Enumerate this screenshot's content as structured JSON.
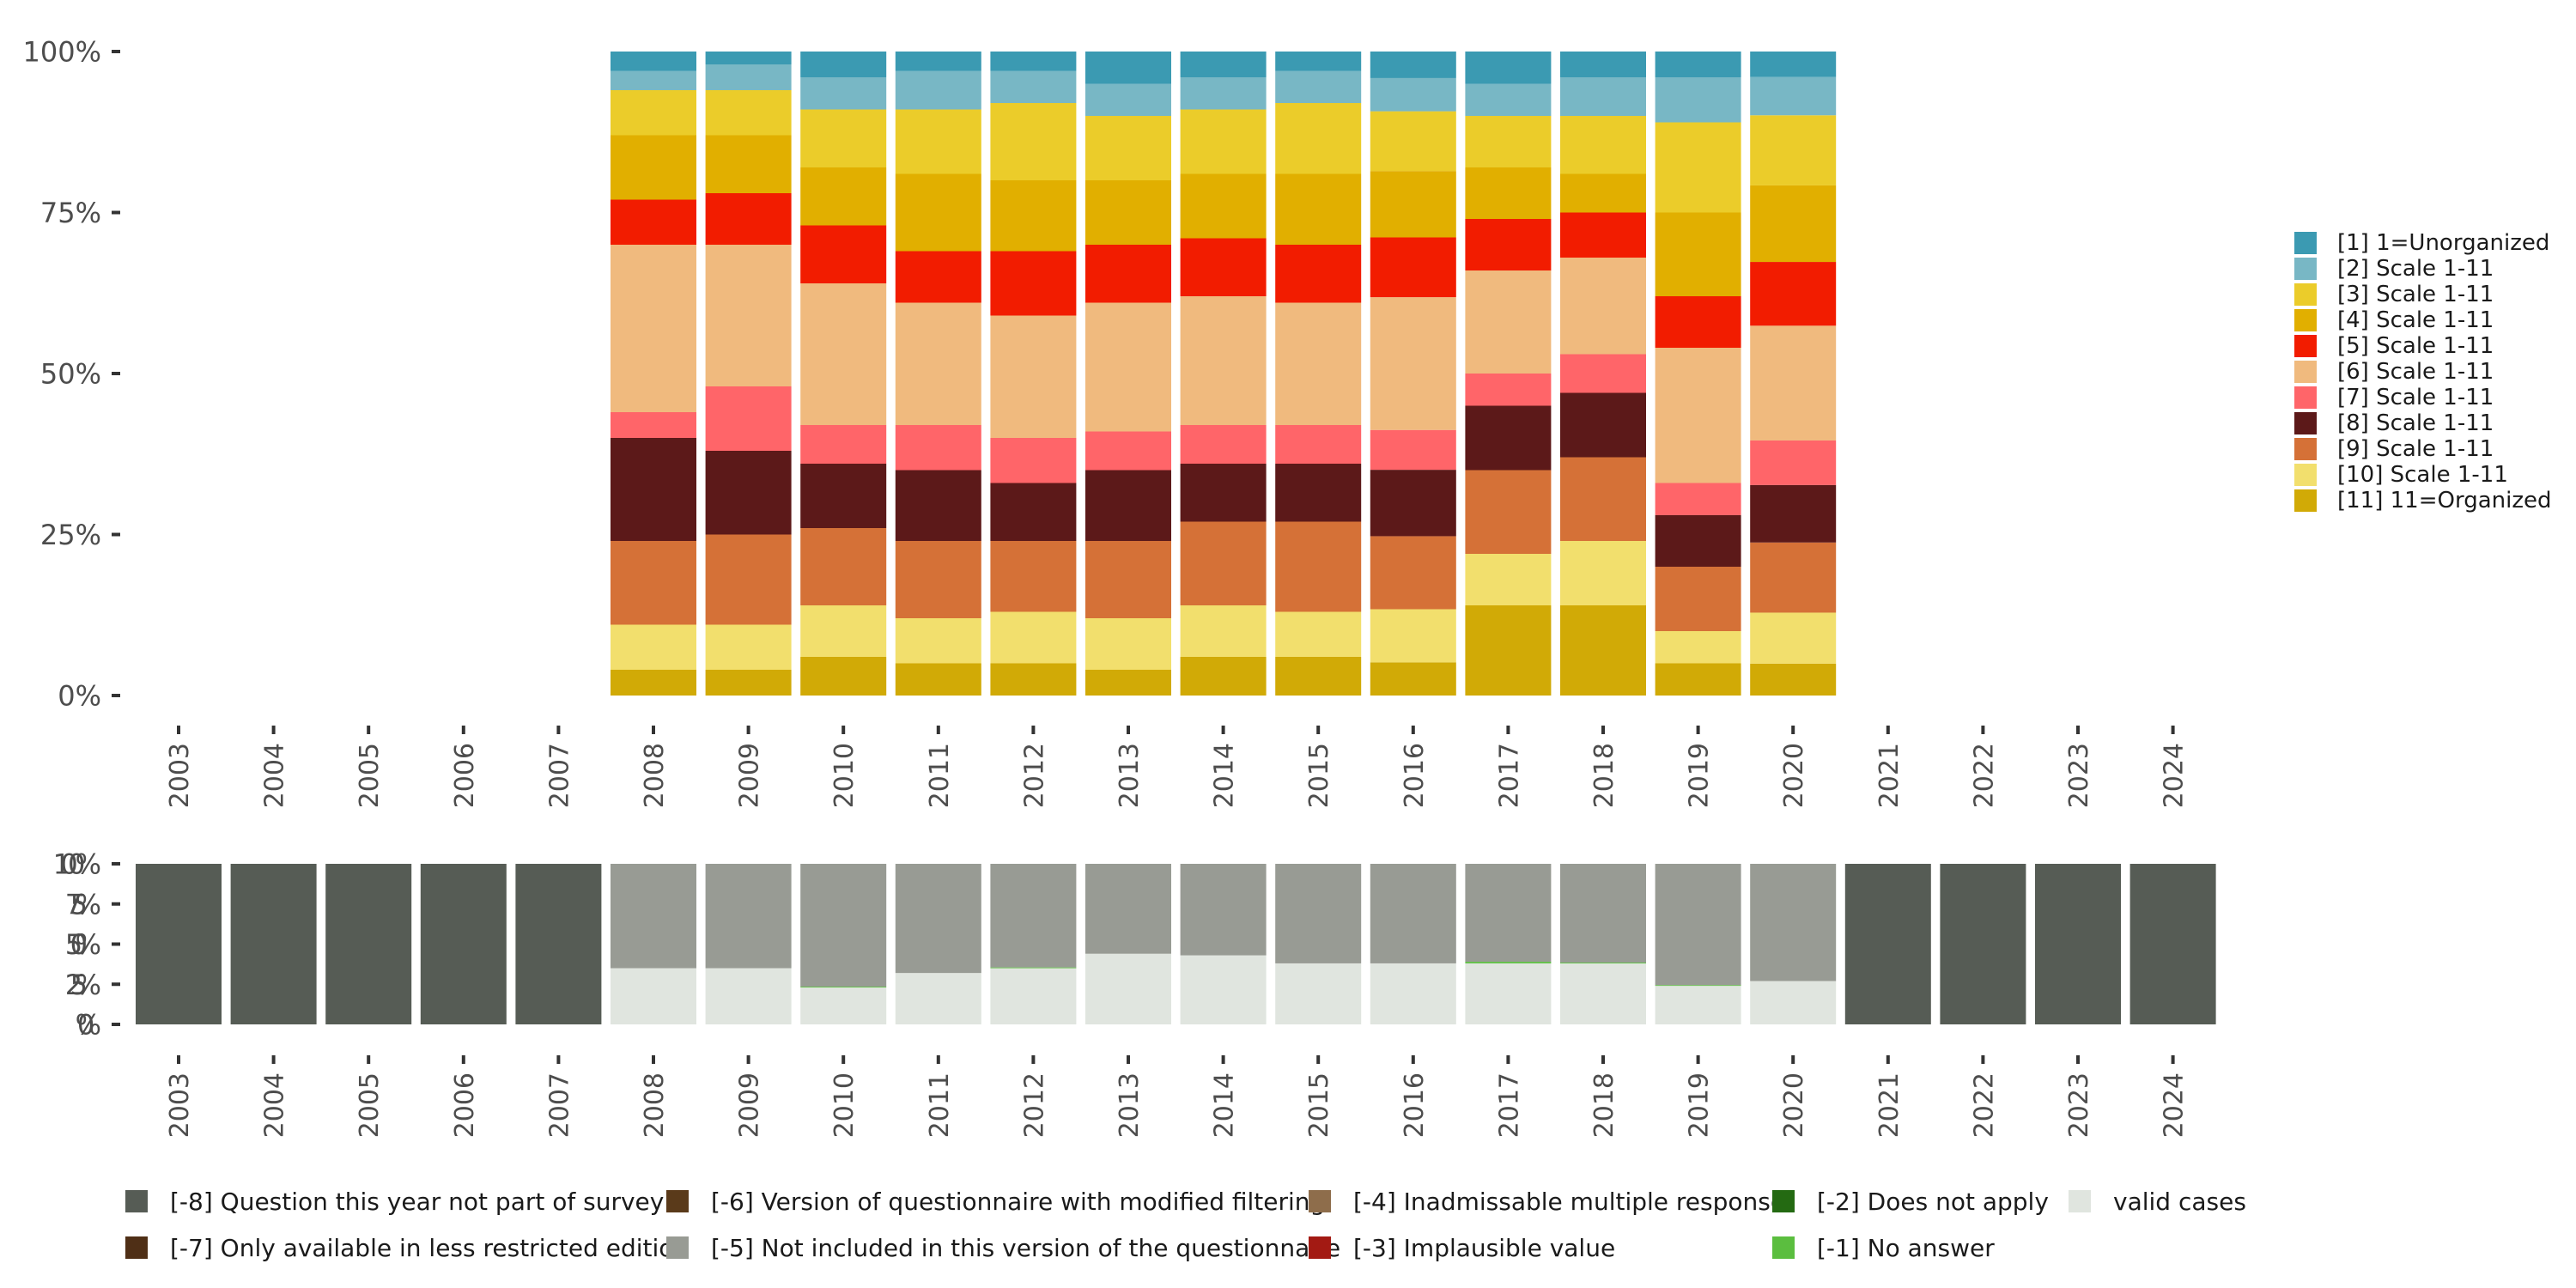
{
  "chart_data": [
    {
      "type": "bar",
      "stacked": true,
      "normalized": true,
      "title": "",
      "xlabel": "",
      "ylabel": "",
      "ylim": [
        0,
        100
      ],
      "yticks": [
        "0%",
        "25%",
        "50%",
        "75%",
        "100%"
      ],
      "grid": false,
      "legend_position": "right",
      "categories": [
        "2003",
        "2004",
        "2005",
        "2006",
        "2007",
        "2008",
        "2009",
        "2010",
        "2011",
        "2012",
        "2013",
        "2014",
        "2015",
        "2016",
        "2017",
        "2018",
        "2019",
        "2020",
        "2021",
        "2022",
        "2023",
        "2024"
      ],
      "series": [
        {
          "name": "[11] 11=Organized",
          "color": "#D1AA06",
          "values": [
            null,
            null,
            null,
            null,
            null,
            4,
            4,
            6,
            5,
            5,
            4,
            6,
            6,
            5,
            14,
            14,
            5,
            5,
            null,
            null,
            null,
            null
          ]
        },
        {
          "name": "[10] Scale 1-11",
          "color": "#F2DF6D",
          "values": [
            null,
            null,
            null,
            null,
            null,
            7,
            7,
            8,
            7,
            8,
            8,
            8,
            7,
            8,
            8,
            10,
            5,
            8,
            null,
            null,
            null,
            null
          ]
        },
        {
          "name": "[9] Scale 1-11",
          "color": "#D57137",
          "values": [
            null,
            null,
            null,
            null,
            null,
            13,
            14,
            12,
            12,
            11,
            12,
            13,
            14,
            11,
            13,
            13,
            10,
            11,
            null,
            null,
            null,
            null
          ]
        },
        {
          "name": "[8] Scale 1-11",
          "color": "#5C1919",
          "values": [
            null,
            null,
            null,
            null,
            null,
            16,
            13,
            10,
            11,
            9,
            11,
            9,
            9,
            10,
            10,
            10,
            8,
            9,
            null,
            null,
            null,
            null
          ]
        },
        {
          "name": "[7] Scale 1-11",
          "color": "#FF6569",
          "values": [
            null,
            null,
            null,
            null,
            null,
            4,
            10,
            6,
            7,
            7,
            6,
            6,
            6,
            6,
            5,
            6,
            5,
            7,
            null,
            null,
            null,
            null
          ]
        },
        {
          "name": "[6] Scale 1-11",
          "color": "#F0BA7E",
          "values": [
            null,
            null,
            null,
            null,
            null,
            26,
            22,
            22,
            19,
            19,
            20,
            20,
            19,
            20,
            16,
            15,
            21,
            18,
            null,
            null,
            null,
            null
          ]
        },
        {
          "name": "[5] Scale 1-11",
          "color": "#F21C00",
          "values": [
            null,
            null,
            null,
            null,
            null,
            7,
            8,
            9,
            8,
            10,
            9,
            9,
            9,
            9,
            8,
            7,
            8,
            10,
            null,
            null,
            null,
            null
          ]
        },
        {
          "name": "[4] Scale 1-11",
          "color": "#E1AF00",
          "values": [
            null,
            null,
            null,
            null,
            null,
            10,
            9,
            9,
            12,
            11,
            10,
            10,
            11,
            10,
            8,
            6,
            13,
            12,
            null,
            null,
            null,
            null
          ]
        },
        {
          "name": "[3] Scale 1-11",
          "color": "#EBCC2A",
          "values": [
            null,
            null,
            null,
            null,
            null,
            7,
            7,
            9,
            10,
            12,
            10,
            10,
            11,
            9,
            8,
            9,
            14,
            11,
            null,
            null,
            null,
            null
          ]
        },
        {
          "name": "[2] Scale 1-11",
          "color": "#78B7C5",
          "values": [
            null,
            null,
            null,
            null,
            null,
            3,
            4,
            5,
            6,
            5,
            5,
            5,
            5,
            5,
            5,
            6,
            7,
            6,
            null,
            null,
            null,
            null
          ]
        },
        {
          "name": "[1] 1=Unorganized",
          "color": "#3B9AB2",
          "values": [
            null,
            null,
            null,
            null,
            null,
            3,
            2,
            4,
            3,
            3,
            5,
            4,
            3,
            4,
            5,
            4,
            4,
            4,
            null,
            null,
            null,
            null
          ]
        }
      ]
    },
    {
      "type": "bar",
      "stacked": true,
      "normalized": true,
      "title": "",
      "xlabel": "",
      "ylabel": "",
      "ylim": [
        0,
        100
      ],
      "yticks": [
        "0%",
        "25%",
        "50%",
        "75%",
        "100%"
      ],
      "grid": false,
      "legend_position": "bottom",
      "categories": [
        "2003",
        "2004",
        "2005",
        "2006",
        "2007",
        "2008",
        "2009",
        "2010",
        "2011",
        "2012",
        "2013",
        "2014",
        "2015",
        "2016",
        "2017",
        "2018",
        "2019",
        "2020",
        "2021",
        "2022",
        "2023",
        "2024"
      ],
      "series": [
        {
          "name": "valid cases",
          "color": "#E0E5DF",
          "values": [
            0,
            0,
            0,
            0,
            0,
            35,
            35,
            23,
            32,
            35,
            44,
            43,
            38,
            38,
            38,
            38,
            24,
            27,
            0,
            0,
            0,
            0
          ]
        },
        {
          "name": "[-1] No answer",
          "color": "#5BBE3F",
          "values": [
            0,
            0,
            0,
            0,
            0,
            0,
            0,
            0.5,
            0,
            0.5,
            0,
            0,
            0,
            0,
            1,
            0.5,
            0.5,
            0,
            0,
            0,
            0,
            0
          ]
        },
        {
          "name": "[-2] Does not apply",
          "color": "#246A12",
          "values": [
            0,
            0,
            0,
            0,
            0,
            0,
            0,
            0,
            0,
            0,
            0,
            0,
            0,
            0,
            0,
            0,
            0,
            0,
            0,
            0,
            0,
            0
          ]
        },
        {
          "name": "[-3] Implausible value",
          "color": "#A31A13",
          "values": [
            0,
            0,
            0,
            0,
            0,
            0,
            0,
            0,
            0,
            0,
            0,
            0,
            0,
            0,
            0,
            0,
            0,
            0,
            0,
            0,
            0,
            0
          ]
        },
        {
          "name": "[-4] Inadmissable multiple response",
          "color": "#8E6D4B",
          "values": [
            0,
            0,
            0,
            0,
            0,
            0,
            0,
            0,
            0,
            0,
            0,
            0,
            0,
            0,
            0,
            0,
            0,
            0,
            0,
            0,
            0,
            0
          ]
        },
        {
          "name": "[-5] Not included in this version of the questionnaire",
          "color": "#989B94",
          "values": [
            0,
            0,
            0,
            0,
            0,
            65,
            65,
            76.5,
            68,
            64.5,
            56,
            57,
            62,
            62,
            61,
            61.5,
            75.5,
            73,
            0,
            0,
            0,
            0
          ]
        },
        {
          "name": "[-6] Version of questionnaire with modified filtering",
          "color": "#5A3A1A",
          "values": [
            0,
            0,
            0,
            0,
            0,
            0,
            0,
            0,
            0,
            0,
            0,
            0,
            0,
            0,
            0,
            0,
            0,
            0,
            0,
            0,
            0,
            0
          ]
        },
        {
          "name": "[-7] Only available in less restricted edition",
          "color": "#4F2F16",
          "values": [
            0,
            0,
            0,
            0,
            0,
            0,
            0,
            0,
            0,
            0,
            0,
            0,
            0,
            0,
            0,
            0,
            0,
            0,
            0,
            0,
            0,
            0
          ]
        },
        {
          "name": "[-8] Question this year not part of survey",
          "color": "#565C55",
          "values": [
            100,
            100,
            100,
            100,
            100,
            0,
            0,
            0,
            0,
            0,
            0,
            0,
            0,
            0,
            0,
            0,
            0,
            0,
            100,
            100,
            100,
            100
          ]
        }
      ]
    }
  ],
  "legend_right": [
    {
      "label": "[1] 1=Unorganized",
      "color": "#3B9AB2"
    },
    {
      "label": "[2] Scale 1-11",
      "color": "#78B7C5"
    },
    {
      "label": "[3] Scale 1-11",
      "color": "#EBCC2A"
    },
    {
      "label": "[4] Scale 1-11",
      "color": "#E1AF00"
    },
    {
      "label": "[5] Scale 1-11",
      "color": "#F21C00"
    },
    {
      "label": "[6] Scale 1-11",
      "color": "#F0BA7E"
    },
    {
      "label": "[7] Scale 1-11",
      "color": "#FF6569"
    },
    {
      "label": "[8] Scale 1-11",
      "color": "#5C1919"
    },
    {
      "label": "[9] Scale 1-11",
      "color": "#D57137"
    },
    {
      "label": "[10] Scale 1-11",
      "color": "#F2DF6D"
    },
    {
      "label": "[11] 11=Organized",
      "color": "#D1AA06"
    }
  ],
  "legend_bottom": {
    "row1": [
      {
        "label": "[-8] Question this year not part of survey",
        "color": "#565C55"
      },
      {
        "label": "[-6] Version of questionnaire with modified filtering",
        "color": "#5A3A1A"
      },
      {
        "label": "[-4] Inadmissable multiple response",
        "color": "#8E6D4B"
      },
      {
        "label": "[-2] Does not apply",
        "color": "#246A12"
      },
      {
        "label": "valid cases",
        "color": "#E0E5DF"
      }
    ],
    "row2": [
      {
        "label": "[-7] Only available in less restricted edition",
        "color": "#4F2F16"
      },
      {
        "label": "[-5] Not included in this version of the questionnaire",
        "color": "#989B94"
      },
      {
        "label": "[-3] Implausible value",
        "color": "#A31A13"
      },
      {
        "label": "[-1] No answer",
        "color": "#5BBE3F"
      },
      {
        "label": "",
        "color": ""
      }
    ]
  }
}
